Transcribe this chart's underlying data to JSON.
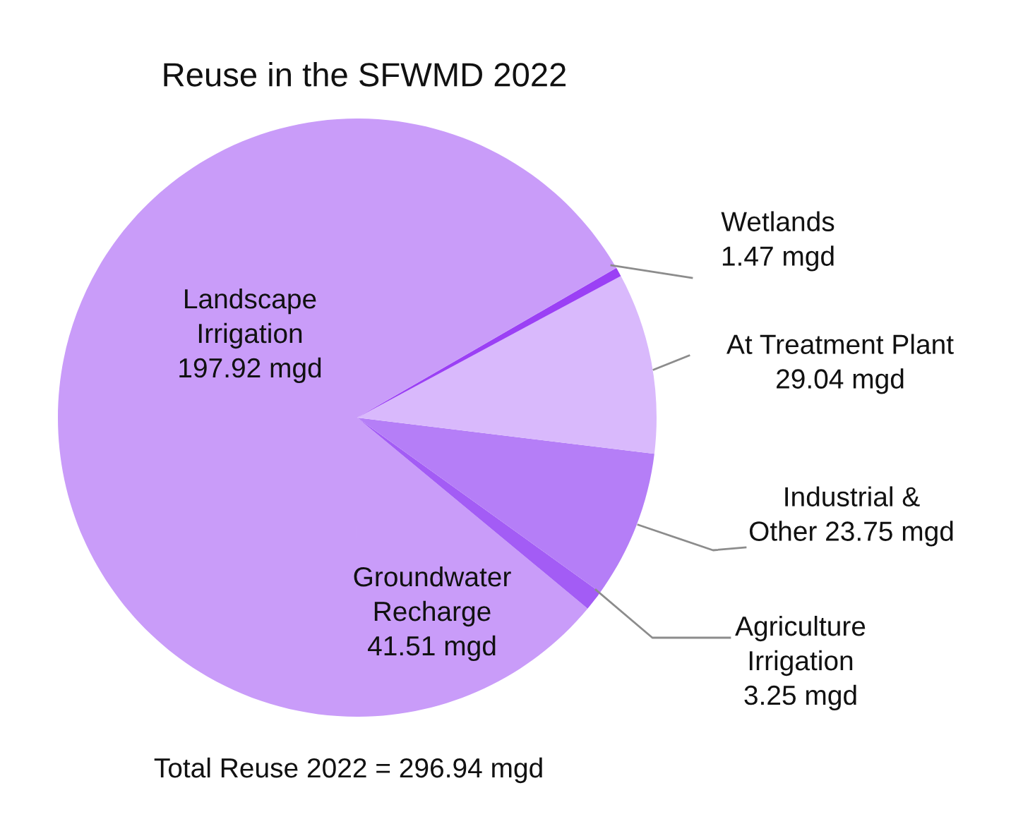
{
  "chart_data": {
    "type": "pie",
    "title": "Reuse in the SFWMD 2022",
    "categories": [
      "Groundwater\nRecharge",
      "Agriculture\nIrrigation",
      "Industrial &\nOther",
      "At Treatment Plant",
      "Wetlands",
      "Landscape\nIrrigation"
    ],
    "values": [
      41.51,
      3.25,
      23.75,
      29.04,
      1.47,
      197.92
    ],
    "value_labels": [
      "41.51 mgd",
      "3.25 mgd",
      "23.75 mgd",
      "29.04 mgd",
      "1.47 mgd",
      "197.92 mgd"
    ],
    "colors": [
      "#c99cf9",
      "#a35cf5",
      "#b57ef7",
      "#d9b9fc",
      "#9b40f5",
      "#c99cf9"
    ],
    "annotations": [
      "Total Reuse 2022 = 296.94 mgd"
    ],
    "legend": false
  }
}
